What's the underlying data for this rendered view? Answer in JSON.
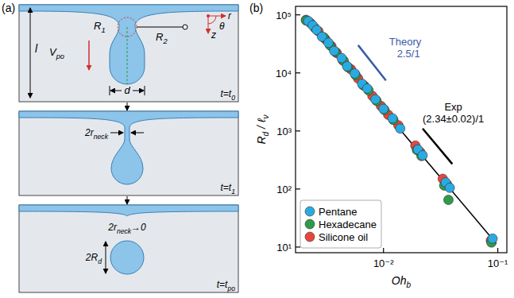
{
  "panels": [
    "(a)",
    "(b)"
  ],
  "diagram": {
    "frame_1": {
      "time": [
        {
          "text": "t=t",
          "sub": "0"
        }
      ],
      "length": [
        {
          "text": "l"
        }
      ],
      "velocity": [
        {
          "text": "V",
          "sub": "po"
        }
      ],
      "radius_1": [
        {
          "text": "R",
          "sub": "1"
        }
      ],
      "radius_2": [
        {
          "text": "R",
          "sub": "2"
        }
      ],
      "diameter": [
        {
          "text": "d"
        }
      ],
      "theta": [
        {
          "text": "θ"
        }
      ],
      "r": [
        {
          "text": "r"
        }
      ],
      "z": [
        {
          "text": "z"
        }
      ]
    },
    "frame_2": {
      "time": [
        {
          "text": "t=t",
          "sub": "1"
        }
      ],
      "neck": [
        {
          "text": "2r",
          "sub": "neck"
        }
      ]
    },
    "frame_3": {
      "time": [
        {
          "text": "t=t",
          "sub": "po"
        }
      ],
      "neck": [
        {
          "text": "2r",
          "sub": "neck"
        },
        {
          "text": "→0"
        }
      ],
      "drop": [
        {
          "text": "2R",
          "sub": "d"
        }
      ]
    }
  },
  "chart_data": {
    "type": "scatter",
    "log": true,
    "grid": false,
    "legend": "lower left",
    "marker": "circle",
    "xlabel": [
      {
        "text": "Oh",
        "sub": "b"
      }
    ],
    "ylabel": [
      {
        "text": "R",
        "sub": "d"
      },
      {
        "text": " / ℓ",
        "sub": "ν"
      }
    ],
    "xlim": [
      0.0017,
      0.12
    ],
    "ylim": [
      8,
      140000
    ],
    "xticks": [
      {
        "value": 0.01,
        "label": "10⁻²"
      },
      {
        "value": 0.1,
        "label": "10⁻¹"
      }
    ],
    "yticks": [
      {
        "value": 10,
        "label": "10¹"
      },
      {
        "value": 100,
        "label": "10²"
      },
      {
        "value": 1000,
        "label": "10³"
      },
      {
        "value": 10000,
        "label": "10⁴"
      },
      {
        "value": 100000,
        "label": "10⁵"
      }
    ],
    "series": [
      {
        "name": "Pentane",
        "color": "#29abe2",
        "x": [
          0.0022,
          0.0024,
          0.0026,
          0.0029,
          0.0033,
          0.0037,
          0.0043,
          0.0048,
          0.0056,
          0.0065,
          0.0072,
          0.0085,
          0.01,
          0.012,
          0.014,
          0.02,
          0.022,
          0.035,
          0.038,
          0.09
        ],
        "values": [
          78000,
          66000,
          55000,
          42000,
          33000,
          24000,
          18000,
          13000,
          9800,
          6500,
          5400,
          3500,
          2400,
          1650,
          1100,
          480,
          380,
          130,
          105,
          14
        ]
      },
      {
        "name": "Hexadecane",
        "color": "#2f9b4a",
        "x": [
          0.0021,
          0.0025,
          0.003,
          0.0034,
          0.0038,
          0.0045,
          0.0049,
          0.0057,
          0.0066,
          0.0074,
          0.0087,
          0.0102,
          0.0122,
          0.0196,
          0.0215,
          0.034,
          0.037,
          0.088
        ],
        "values": [
          80000,
          60000,
          41000,
          30000,
          23000,
          16000,
          12500,
          9200,
          6200,
          5000,
          3300,
          2300,
          1550,
          470,
          370,
          115,
          65,
          12
        ]
      },
      {
        "name": "Silicone oil",
        "color": "#e8463b",
        "x": [
          0.0021,
          0.0023,
          0.0027,
          0.0031,
          0.0035,
          0.0039,
          0.0044,
          0.0052,
          0.006,
          0.0068,
          0.008,
          0.0095,
          0.011,
          0.0135,
          0.019,
          0.021,
          0.033,
          0.036,
          0.087
        ],
        "values": [
          82000,
          72000,
          52000,
          38000,
          29000,
          22000,
          16500,
          11500,
          8000,
          6000,
          4000,
          2700,
          1900,
          1250,
          560,
          430,
          150,
          120,
          13
        ]
      }
    ],
    "fit_line": {
      "x": [
        0.0021,
        0.097
      ],
      "values": [
        88000,
        11.5
      ],
      "color": "#000000"
    },
    "annotations": [
      {
        "text": "Theory",
        "label": "2.5/1",
        "color": "#3b5ba9",
        "x": [
          0.006,
          0.0105
        ],
        "values": [
          30000,
          7400
        ]
      },
      {
        "text": "Exp",
        "label": "(2.34±0.02)/1",
        "color": "#000000",
        "x": [
          0.022,
          0.04
        ],
        "values": [
          1100,
          270
        ]
      }
    ]
  }
}
